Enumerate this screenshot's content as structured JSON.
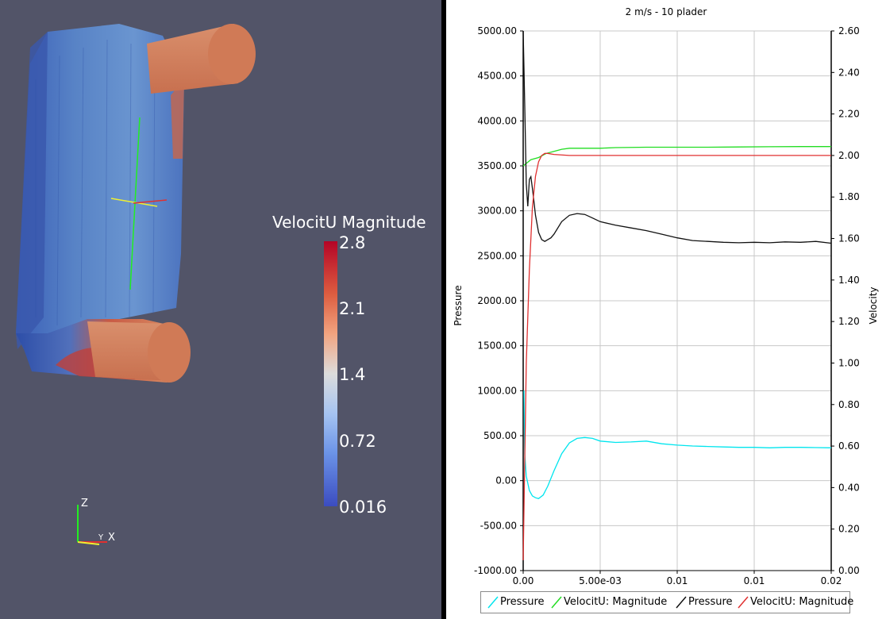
{
  "render_view": {
    "colorbar": {
      "title": "VelocitU Magnitude",
      "labels": [
        "2.8",
        "2.1",
        "1.4",
        "0.72",
        "0.016"
      ],
      "colors": {
        "high": "#b40426",
        "mid": "#dddddd",
        "low": "#3b4cc0"
      }
    },
    "axes_triad": {
      "z": "Z",
      "x": "X",
      "y": "Y"
    },
    "background": "#525468"
  },
  "chart_data": {
    "type": "line",
    "title": "2 m/s - 10 plader",
    "ylabel": "Pressure",
    "y2label": "Velocity",
    "ylim": [
      -1000,
      5000
    ],
    "y2lim": [
      0.0,
      2.6
    ],
    "xlim": [
      0,
      0.02
    ],
    "x_tick_labels": [
      "0.00",
      "5.00e-03",
      "0.01",
      "0.01",
      "0.02"
    ],
    "y_tick_labels": [
      "5000.00",
      "4500.00",
      "4000.00",
      "3500.00",
      "3000.00",
      "2500.00",
      "2000.00",
      "1500.00",
      "1000.00",
      "500.00",
      "0.00",
      "-500.00",
      "-1000.00"
    ],
    "y2_tick_labels": [
      "2.60",
      "2.40",
      "2.20",
      "2.00",
      "1.80",
      "1.60",
      "1.40",
      "1.20",
      "1.00",
      "0.80",
      "0.60",
      "0.40",
      "0.20",
      "0.00"
    ],
    "grid": true,
    "legend_placement": "bottom",
    "series": [
      {
        "name": "Pressure",
        "color": "#00e5ee",
        "axis": "left",
        "x": [
          5e-05,
          0.0001,
          0.0002,
          0.0004,
          0.0006,
          0.0008,
          0.001,
          0.0013,
          0.0016,
          0.002,
          0.0025,
          0.003,
          0.0035,
          0.004,
          0.0045,
          0.005,
          0.006,
          0.007,
          0.008,
          0.009,
          0.01,
          0.011,
          0.012,
          0.013,
          0.014,
          0.015,
          0.016,
          0.017,
          0.018,
          0.019,
          0.02
        ],
        "y": [
          1000,
          300,
          50,
          -110,
          -170,
          -190,
          -200,
          -160,
          -60,
          110,
          300,
          420,
          470,
          480,
          470,
          440,
          425,
          430,
          440,
          410,
          395,
          385,
          380,
          375,
          370,
          370,
          365,
          370,
          370,
          368,
          365
        ]
      },
      {
        "name": "VelocitU: Magnitude",
        "color": "#22dd22",
        "axis": "right",
        "x": [
          0.0,
          0.0005,
          0.001,
          0.0015,
          0.002,
          0.0025,
          0.003,
          0.004,
          0.005,
          0.006,
          0.008,
          0.01,
          0.012,
          0.014,
          0.016,
          0.018,
          0.02
        ],
        "y": [
          1.95,
          1.98,
          1.99,
          2.01,
          2.02,
          2.03,
          2.035,
          2.035,
          2.035,
          2.038,
          2.04,
          2.04,
          2.04,
          2.041,
          2.042,
          2.043,
          2.043
        ]
      },
      {
        "name": "Pressure",
        "color": "#111111",
        "axis": "left",
        "x": [
          0.0,
          0.0001,
          0.0002,
          0.0003,
          0.0004,
          0.0005,
          0.0006,
          0.0007,
          0.0008,
          0.001,
          0.0012,
          0.0014,
          0.0016,
          0.0018,
          0.002,
          0.0025,
          0.003,
          0.0035,
          0.004,
          0.0045,
          0.005,
          0.006,
          0.007,
          0.008,
          0.009,
          0.01,
          0.011,
          0.012,
          0.013,
          0.014,
          0.015,
          0.016,
          0.017,
          0.018,
          0.019,
          0.02
        ],
        "y": [
          5000,
          4200,
          3300,
          3050,
          3350,
          3380,
          3250,
          3100,
          2950,
          2760,
          2680,
          2660,
          2680,
          2700,
          2740,
          2880,
          2950,
          2970,
          2960,
          2920,
          2880,
          2840,
          2810,
          2780,
          2740,
          2700,
          2670,
          2660,
          2650,
          2645,
          2650,
          2645,
          2655,
          2650,
          2660,
          2640
        ]
      },
      {
        "name": "VelocitU: Magnitude",
        "color": "#e03030",
        "axis": "right",
        "x": [
          0.0,
          0.0002,
          0.0004,
          0.0006,
          0.0008,
          0.001,
          0.0012,
          0.0014,
          0.0016,
          0.002,
          0.003,
          0.005,
          0.01,
          0.015,
          0.02
        ],
        "y": [
          0.05,
          1.0,
          1.45,
          1.75,
          1.9,
          1.97,
          2.0,
          2.01,
          2.01,
          2.005,
          2.0,
          2.0,
          2.0,
          2.0,
          2.0
        ]
      }
    ]
  }
}
